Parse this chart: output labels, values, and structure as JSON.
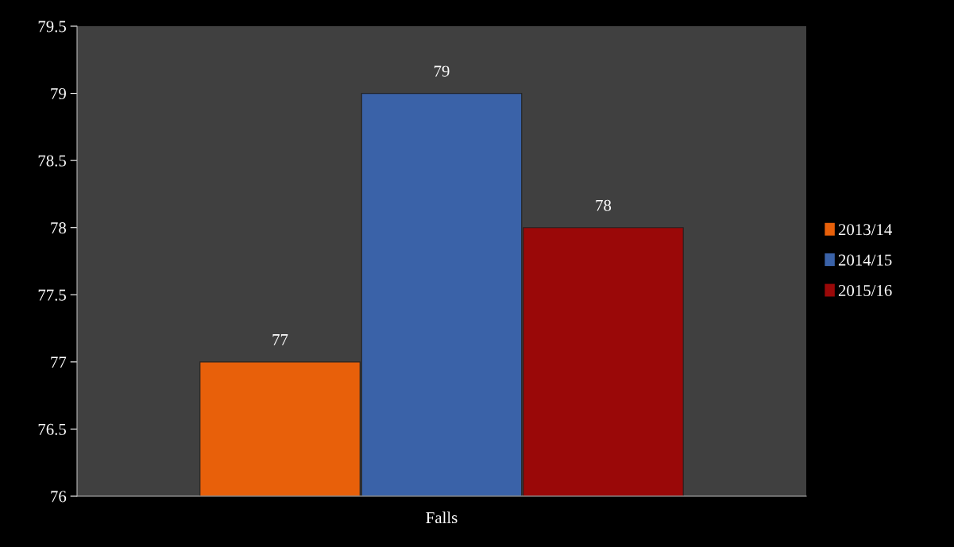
{
  "chart_data": {
    "type": "bar",
    "categories": [
      "Falls"
    ],
    "series": [
      {
        "name": "2013/14",
        "color": "#e8600a",
        "values": [
          77
        ]
      },
      {
        "name": "2014/15",
        "color": "#3a62a8",
        "values": [
          79
        ]
      },
      {
        "name": "2015/16",
        "color": "#9a0808",
        "values": [
          78
        ]
      }
    ],
    "ylim": [
      76,
      79.5
    ],
    "yticks": [
      76,
      76.5,
      77,
      77.5,
      78,
      78.5,
      79,
      79.5
    ],
    "data_labels": true,
    "legend": "right",
    "grid": false
  }
}
